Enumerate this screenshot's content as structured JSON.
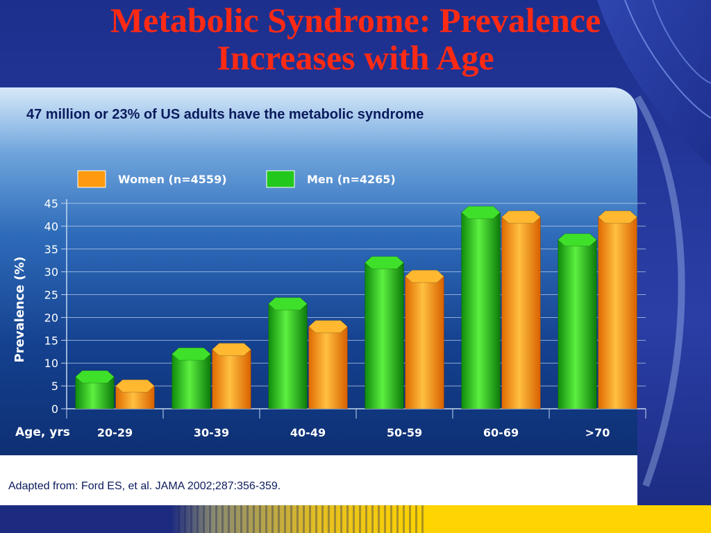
{
  "slide": {
    "title_line1": "Metabolic Syndrome: Prevalence",
    "title_line2": "Increases with Age",
    "subtitle": "47 million or 23% of US adults have the metabolic syndrome",
    "source": "Adapted from: Ford ES, et al. JAMA 2002;287:356-359."
  },
  "chart_data": {
    "type": "bar",
    "title": "",
    "xlabel": "Age, yrs",
    "ylabel": "Prevalence (%)",
    "ylim": [
      0,
      45
    ],
    "yticks": [
      "0",
      "5",
      "10",
      "15",
      "20",
      "25",
      "30",
      "35",
      "40",
      "45"
    ],
    "categories": [
      "20-29",
      "30-39",
      "40-49",
      "50-59",
      "60-69",
      ">70"
    ],
    "series": [
      {
        "name": "Men (n=4265)",
        "color": "#22c81c",
        "values": [
          7,
          12,
          23,
          32,
          43,
          37
        ]
      },
      {
        "name": "Women (n=4559)",
        "color": "#ff9a10",
        "values": [
          5,
          13,
          18,
          29,
          42,
          42
        ]
      }
    ],
    "legend": [
      {
        "label": "Women (n=4559)",
        "color": "#ff9a10"
      },
      {
        "label": "Men (n=4265)",
        "color": "#22c81c"
      }
    ],
    "legend_position": "top",
    "grid": true
  }
}
